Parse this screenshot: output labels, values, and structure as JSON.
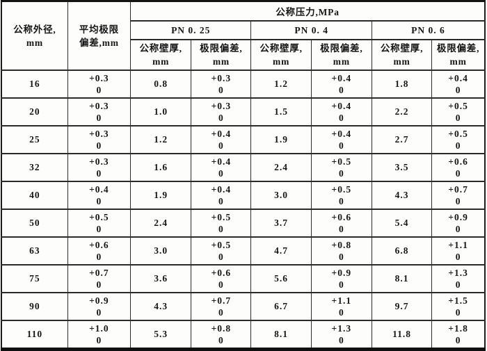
{
  "table": {
    "header": {
      "outer_diameter": [
        "公称外径,",
        "mm"
      ],
      "avg_limit_deviation": [
        "平均极限",
        "偏差,mm"
      ],
      "pressure": "公称压力,MPa",
      "pn_groups": [
        "PN 0. 25",
        "PN 0. 4",
        "PN 0. 6"
      ],
      "wall_thickness": [
        "公称壁厚,",
        "mm"
      ],
      "limit_deviation": [
        "极限偏差,",
        "mm"
      ]
    },
    "rows": [
      {
        "d": "16",
        "avg": [
          "+0.3",
          "0"
        ],
        "w025": "0.8",
        "t025": [
          "+0.3",
          "0"
        ],
        "w04": "1.2",
        "t04": [
          "+0.4",
          "0"
        ],
        "w06": "1.8",
        "t06": [
          "+0.4",
          "0"
        ]
      },
      {
        "d": "20",
        "avg": [
          "+0.3",
          "0"
        ],
        "w025": "1.0",
        "t025": [
          "+0.3",
          "0"
        ],
        "w04": "1.5",
        "t04": [
          "+0.4",
          "0"
        ],
        "w06": "2.2",
        "t06": [
          "+0.5",
          "0"
        ]
      },
      {
        "d": "25",
        "avg": [
          "+0.3",
          "0"
        ],
        "w025": "1.2",
        "t025": [
          "+0.4",
          "0"
        ],
        "w04": "1.9",
        "t04": [
          "+0.4",
          "0"
        ],
        "w06": "2.7",
        "t06": [
          "+0.5",
          "0"
        ]
      },
      {
        "d": "32",
        "avg": [
          "+0.3",
          "0"
        ],
        "w025": "1.6",
        "t025": [
          "+0.4",
          "0"
        ],
        "w04": "2.4",
        "t04": [
          "+0.5",
          "0"
        ],
        "w06": "3.5",
        "t06": [
          "+0.6",
          "0"
        ]
      },
      {
        "d": "40",
        "avg": [
          "+0.4",
          "0"
        ],
        "w025": "1.9",
        "t025": [
          "+0.4",
          "0"
        ],
        "w04": "3.0",
        "t04": [
          "+0.5",
          "0"
        ],
        "w06": "4.3",
        "t06": [
          "+0.7",
          "0"
        ]
      },
      {
        "d": "50",
        "avg": [
          "+0.5",
          "0"
        ],
        "w025": "2.4",
        "t025": [
          "+0.5",
          "0"
        ],
        "w04": "3.7",
        "t04": [
          "+0.6",
          "0"
        ],
        "w06": "5.4",
        "t06": [
          "+0.9",
          "0"
        ]
      },
      {
        "d": "63",
        "avg": [
          "+0.6",
          "0"
        ],
        "w025": "3.0",
        "t025": [
          "+0.5",
          "0"
        ],
        "w04": "4.7",
        "t04": [
          "+0.8",
          "0"
        ],
        "w06": "6.8",
        "t06": [
          "+1.1",
          "0"
        ]
      },
      {
        "d": "75",
        "avg": [
          "+0.7",
          "0"
        ],
        "w025": "3.6",
        "t025": [
          "+0.6",
          "0"
        ],
        "w04": "5.6",
        "t04": [
          "+0.9",
          "0"
        ],
        "w06": "8.1",
        "t06": [
          "+1.3",
          "0"
        ]
      },
      {
        "d": "90",
        "avg": [
          "+0.9",
          "0"
        ],
        "w025": "4.3",
        "t025": [
          "+0.7",
          "0"
        ],
        "w04": "6.7",
        "t04": [
          "+1.1",
          "0"
        ],
        "w06": "9.7",
        "t06": [
          "+1.5",
          "0"
        ]
      },
      {
        "d": "110",
        "avg": [
          "+1.0",
          "0"
        ],
        "w025": "5.3",
        "t025": [
          "+0.8",
          "0"
        ],
        "w04": "8.1",
        "t04": [
          "+1.3",
          "0"
        ],
        "w06": "11.8",
        "t06": [
          "+1.8",
          "0"
        ]
      }
    ]
  }
}
